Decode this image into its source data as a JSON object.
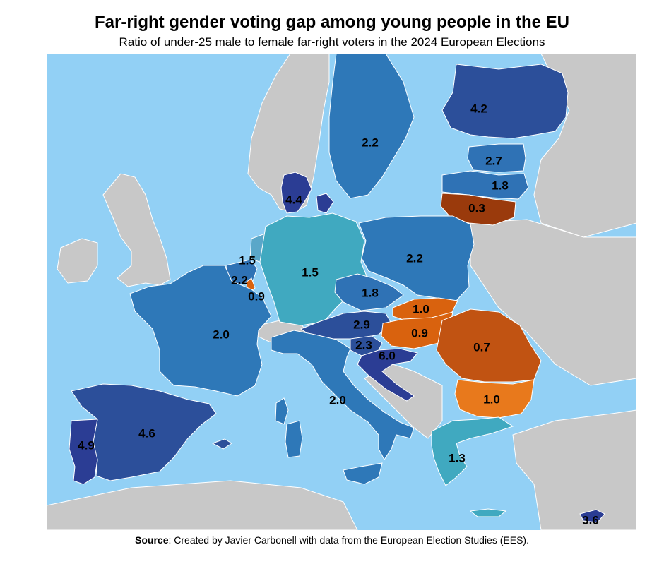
{
  "title": "Far-right gender voting gap among young people in the EU",
  "subtitle": "Ratio of under-25 male to female far-right voters in the 2024 European Elections",
  "source_label": "Source",
  "source_text": ": Created by Javier Carbonell with data from the European Election Studies (EES).",
  "colors": {
    "sea": "#92d0f5",
    "non_eu": "#c8c8c8",
    "scale": [
      "#9a3a0c",
      "#c15312",
      "#d9620e",
      "#e8791c",
      "#40a9c0",
      "#5aa7c9",
      "#2e78b8",
      "#2f72b5",
      "#2c4f9a",
      "#2b3d94"
    ]
  },
  "regions": [
    {
      "country": "Finland",
      "value": "4.2"
    },
    {
      "country": "Sweden",
      "value": "2.2"
    },
    {
      "country": "Estonia",
      "value": "2.7"
    },
    {
      "country": "Latvia",
      "value": "1.8"
    },
    {
      "country": "Lithuania",
      "value": "0.3"
    },
    {
      "country": "Denmark",
      "value": "4.4"
    },
    {
      "country": "Netherlands",
      "value": "1.5"
    },
    {
      "country": "Belgium",
      "value": "2.2"
    },
    {
      "country": "Luxembourg",
      "value": "0.9"
    },
    {
      "country": "Germany",
      "value": "1.5"
    },
    {
      "country": "Poland",
      "value": "2.2"
    },
    {
      "country": "Czechia",
      "value": "1.8"
    },
    {
      "country": "Slovakia",
      "value": "1.0"
    },
    {
      "country": "Austria",
      "value": "2.9"
    },
    {
      "country": "Hungary",
      "value": "0.9"
    },
    {
      "country": "Romania",
      "value": "0.7"
    },
    {
      "country": "Slovenia",
      "value": "2.3"
    },
    {
      "country": "Croatia",
      "value": "6.0"
    },
    {
      "country": "France",
      "value": "2.0"
    },
    {
      "country": "Italy",
      "value": "2.0"
    },
    {
      "country": "Bulgaria",
      "value": "1.0"
    },
    {
      "country": "Spain",
      "value": "4.6"
    },
    {
      "country": "Portugal",
      "value": "4.9"
    },
    {
      "country": "Greece",
      "value": "1.3"
    },
    {
      "country": "Cyprus",
      "value": "3.6"
    }
  ]
}
